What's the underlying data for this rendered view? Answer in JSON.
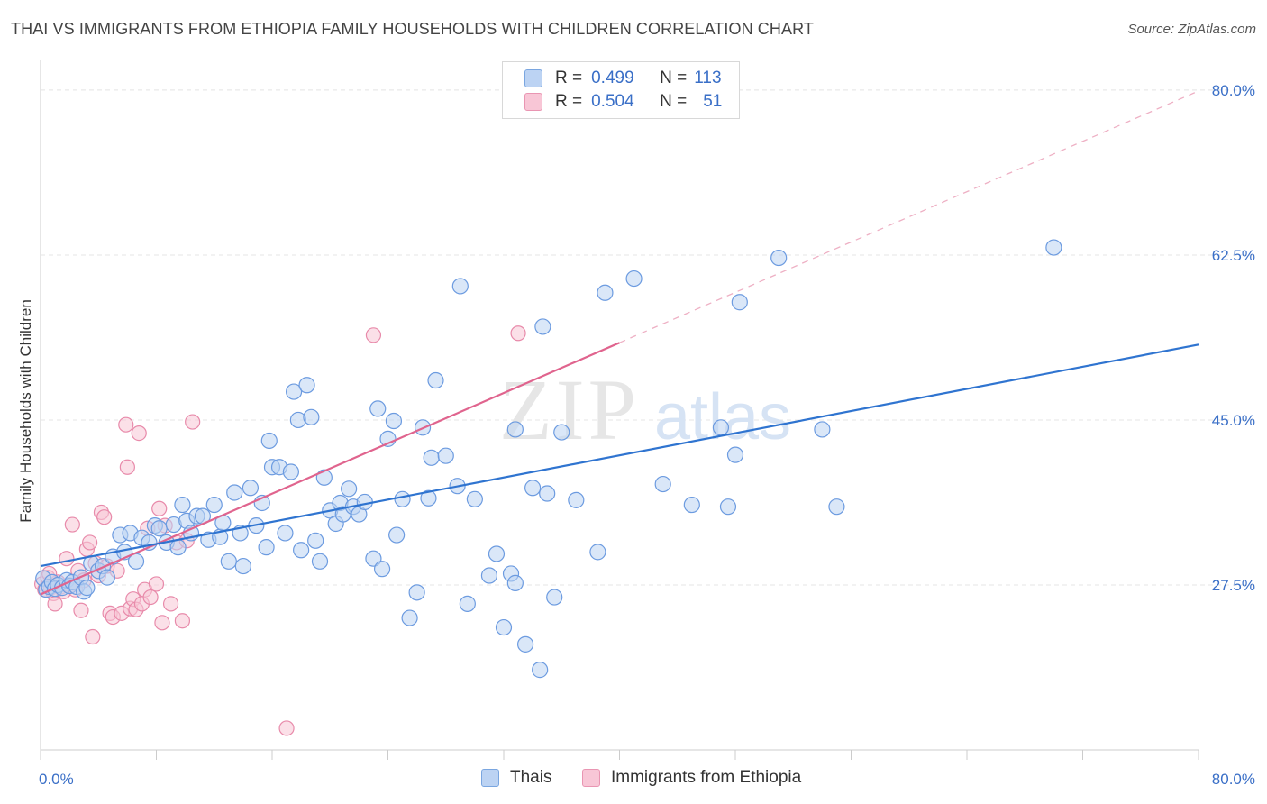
{
  "title": "THAI VS IMMIGRANTS FROM ETHIOPIA FAMILY HOUSEHOLDS WITH CHILDREN CORRELATION CHART",
  "source": "Source: ZipAtlas.com",
  "watermark": {
    "zip": "ZIP",
    "atlas": "atlas"
  },
  "legend_top": {
    "rows": [
      {
        "r_label": "R =",
        "r_value": "0.499",
        "n_label": "N =",
        "n_value": "113"
      },
      {
        "r_label": "R =",
        "r_value": "0.504",
        "n_label": "N =",
        "n_value": "51"
      }
    ]
  },
  "legend_bottom": {
    "thais": "Thais",
    "ethiopia": "Immigrants from Ethiopia"
  },
  "colors": {
    "thai_fill": "#bcd3f3",
    "thai_stroke": "#6c9be0",
    "thai_line": "#2f74d0",
    "eth_fill": "#f8c6d6",
    "eth_stroke": "#e88aaa",
    "eth_line": "#e0648e",
    "grid": "#e4e4e4",
    "tick_label": "#3a6fc7"
  },
  "chart_data": {
    "type": "scatter",
    "ylabel": "Family Households with Children",
    "xlim": [
      0,
      80
    ],
    "ylim": [
      10,
      82
    ],
    "x_tick_labels": [
      {
        "value": 0,
        "label": "0.0%"
      },
      {
        "value": 80,
        "label": "80.0%"
      }
    ],
    "y_tick_labels": [
      {
        "value": 27.5,
        "label": "27.5%"
      },
      {
        "value": 45.0,
        "label": "45.0%"
      },
      {
        "value": 62.5,
        "label": "62.5%"
      },
      {
        "value": 80.0,
        "label": "80.0%"
      }
    ],
    "grid": true,
    "series": [
      {
        "name": "Thais",
        "trend": {
          "x": [
            0,
            80
          ],
          "y": [
            29.5,
            53.0
          ]
        },
        "points": [
          [
            0.2,
            28.2
          ],
          [
            0.4,
            27.0
          ],
          [
            0.6,
            27.3
          ],
          [
            0.8,
            27.8
          ],
          [
            1.0,
            27.1
          ],
          [
            1.2,
            27.5
          ],
          [
            1.5,
            27.2
          ],
          [
            1.8,
            28.0
          ],
          [
            2.0,
            27.4
          ],
          [
            2.2,
            27.8
          ],
          [
            2.5,
            27.3
          ],
          [
            2.8,
            28.3
          ],
          [
            3.0,
            26.8
          ],
          [
            3.2,
            27.2
          ],
          [
            3.5,
            29.8
          ],
          [
            4.0,
            29.0
          ],
          [
            4.3,
            29.5
          ],
          [
            4.6,
            28.3
          ],
          [
            5.0,
            30.5
          ],
          [
            5.5,
            32.8
          ],
          [
            5.8,
            31.0
          ],
          [
            6.2,
            33.0
          ],
          [
            6.6,
            30.0
          ],
          [
            7.0,
            32.5
          ],
          [
            7.5,
            32.0
          ],
          [
            7.9,
            33.8
          ],
          [
            8.2,
            33.5
          ],
          [
            8.7,
            32.0
          ],
          [
            9.2,
            33.9
          ],
          [
            9.5,
            31.5
          ],
          [
            9.8,
            36.0
          ],
          [
            10.1,
            34.3
          ],
          [
            10.4,
            33.0
          ],
          [
            10.8,
            34.8
          ],
          [
            11.2,
            34.8
          ],
          [
            11.6,
            32.3
          ],
          [
            12.0,
            36.0
          ],
          [
            12.4,
            32.6
          ],
          [
            12.6,
            34.1
          ],
          [
            13.0,
            30.0
          ],
          [
            13.4,
            37.3
          ],
          [
            13.8,
            33.0
          ],
          [
            14.0,
            29.5
          ],
          [
            14.5,
            37.8
          ],
          [
            14.9,
            33.8
          ],
          [
            15.3,
            36.2
          ],
          [
            15.6,
            31.5
          ],
          [
            15.8,
            42.8
          ],
          [
            16.0,
            40.0
          ],
          [
            16.5,
            40.0
          ],
          [
            16.9,
            33.0
          ],
          [
            17.3,
            39.5
          ],
          [
            17.5,
            48.0
          ],
          [
            17.8,
            45.0
          ],
          [
            18.0,
            31.2
          ],
          [
            18.4,
            48.7
          ],
          [
            18.7,
            45.3
          ],
          [
            19.0,
            32.2
          ],
          [
            19.3,
            30.0
          ],
          [
            19.6,
            38.9
          ],
          [
            20.0,
            35.4
          ],
          [
            20.4,
            34.0
          ],
          [
            20.7,
            36.2
          ],
          [
            20.9,
            35.0
          ],
          [
            21.3,
            37.7
          ],
          [
            21.6,
            35.8
          ],
          [
            22.0,
            35.0
          ],
          [
            22.4,
            36.3
          ],
          [
            23.0,
            30.3
          ],
          [
            23.3,
            46.2
          ],
          [
            23.6,
            29.2
          ],
          [
            24.0,
            43.0
          ],
          [
            24.4,
            44.9
          ],
          [
            24.6,
            32.8
          ],
          [
            25.0,
            36.6
          ],
          [
            25.5,
            24.0
          ],
          [
            26.0,
            26.7
          ],
          [
            26.4,
            44.2
          ],
          [
            26.8,
            36.7
          ],
          [
            27.0,
            41.0
          ],
          [
            27.3,
            49.2
          ],
          [
            28.0,
            41.2
          ],
          [
            28.8,
            38.0
          ],
          [
            29.5,
            25.5
          ],
          [
            30.0,
            36.6
          ],
          [
            31.0,
            28.5
          ],
          [
            31.5,
            30.8
          ],
          [
            32.0,
            23.0
          ],
          [
            32.5,
            28.7
          ],
          [
            32.8,
            27.7
          ],
          [
            33.5,
            21.2
          ],
          [
            34.0,
            37.8
          ],
          [
            34.5,
            18.5
          ],
          [
            35.0,
            37.2
          ],
          [
            35.5,
            26.2
          ],
          [
            36.0,
            43.7
          ],
          [
            37.0,
            36.5
          ],
          [
            38.5,
            31.0
          ],
          [
            39.0,
            58.5
          ],
          [
            41.0,
            60.0
          ],
          [
            43.0,
            38.2
          ],
          [
            45.0,
            36.0
          ],
          [
            47.0,
            44.2
          ],
          [
            47.5,
            35.8
          ],
          [
            48.0,
            41.3
          ],
          [
            48.3,
            57.5
          ],
          [
            51.0,
            62.2
          ],
          [
            54.0,
            44.0
          ],
          [
            55.0,
            35.8
          ],
          [
            70.0,
            63.3
          ],
          [
            29.0,
            59.2
          ],
          [
            34.7,
            54.9
          ],
          [
            32.8,
            44.0
          ]
        ]
      },
      {
        "name": "Immigrants from Ethiopia",
        "trend": {
          "x": [
            0,
            40
          ],
          "y": [
            26.5,
            53.2
          ]
        },
        "trend_dashed_ext": {
          "x": [
            40,
            80
          ],
          "y": [
            53.2,
            79.9
          ]
        },
        "points": [
          [
            0.1,
            27.6
          ],
          [
            0.3,
            27.0
          ],
          [
            0.5,
            28.3
          ],
          [
            0.7,
            27.2
          ],
          [
            0.9,
            26.6
          ],
          [
            1.0,
            25.5
          ],
          [
            1.2,
            27.8
          ],
          [
            1.4,
            27.3
          ],
          [
            1.6,
            26.8
          ],
          [
            1.8,
            30.3
          ],
          [
            2.0,
            27.5
          ],
          [
            2.2,
            33.9
          ],
          [
            2.4,
            27.0
          ],
          [
            2.6,
            29.0
          ],
          [
            2.8,
            24.8
          ],
          [
            3.0,
            28.0
          ],
          [
            3.2,
            31.3
          ],
          [
            3.4,
            32.0
          ],
          [
            3.6,
            22.0
          ],
          [
            3.8,
            29.8
          ],
          [
            4.0,
            28.5
          ],
          [
            4.2,
            35.2
          ],
          [
            4.4,
            34.7
          ],
          [
            4.6,
            29.5
          ],
          [
            4.8,
            24.5
          ],
          [
            5.0,
            24.1
          ],
          [
            5.3,
            29.0
          ],
          [
            5.6,
            24.5
          ],
          [
            5.9,
            44.5
          ],
          [
            6.0,
            40.0
          ],
          [
            6.2,
            25.0
          ],
          [
            6.4,
            26.0
          ],
          [
            6.6,
            24.9
          ],
          [
            6.8,
            43.6
          ],
          [
            7.0,
            25.5
          ],
          [
            7.2,
            27.0
          ],
          [
            7.4,
            33.5
          ],
          [
            7.6,
            26.2
          ],
          [
            8.0,
            27.6
          ],
          [
            8.2,
            35.6
          ],
          [
            8.4,
            23.5
          ],
          [
            8.6,
            33.8
          ],
          [
            9.0,
            25.5
          ],
          [
            9.4,
            32.0
          ],
          [
            9.8,
            23.7
          ],
          [
            10.1,
            32.2
          ],
          [
            10.5,
            44.8
          ],
          [
            17.0,
            12.3
          ],
          [
            23.0,
            54.0
          ],
          [
            33.0,
            54.2
          ],
          [
            0.6,
            28.7
          ]
        ]
      }
    ]
  }
}
